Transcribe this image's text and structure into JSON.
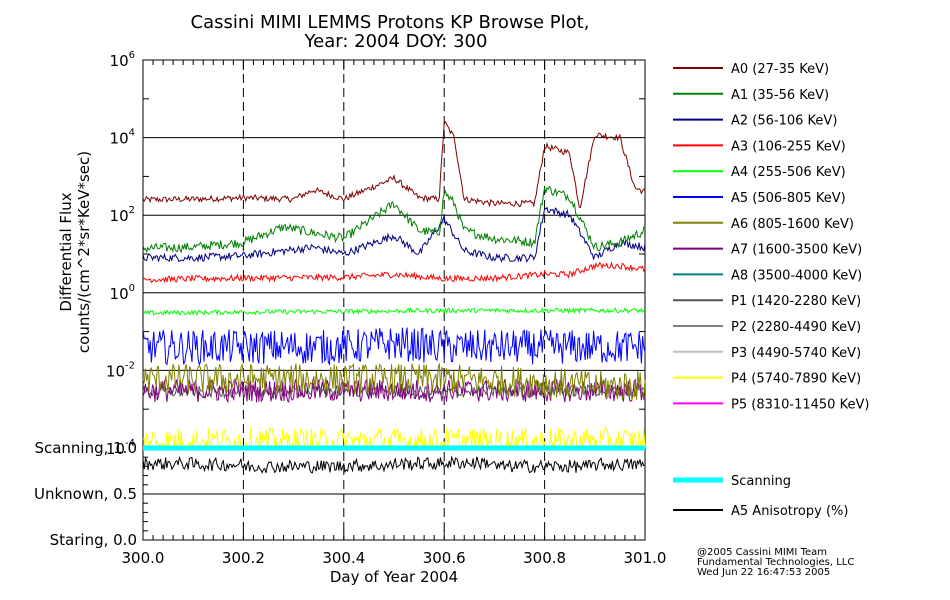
{
  "chart_data": {
    "type": "line",
    "title": "Cassini MIMI LEMMS Protons KP Browse Plot,",
    "subtitle": "Year: 2004 DOY: 300",
    "xlabel": "Day of Year 2004",
    "ylabel_line1": "Differential Flux",
    "ylabel_line2": "counts/(cm^2*sr*KeV*sec)",
    "xlim": [
      300.0,
      301.0
    ],
    "x_ticks": [
      "300.0",
      "300.2",
      "300.4",
      "300.6",
      "300.8",
      "301.0"
    ],
    "upper_panel": {
      "yscale": "log",
      "ylim": [
        0.0001,
        1000000
      ],
      "y_tick_exponents": [
        "6",
        "4",
        "2",
        "0",
        "-2",
        "-4"
      ],
      "grid": "major decades (solid), day ticks (dashed)"
    },
    "lower_panel": {
      "ylim": [
        0.0,
        1.0
      ],
      "y_ticks": [
        "Staring, 0.0",
        "Unknown, 0.5",
        "Scanning, 1.0"
      ]
    },
    "series": [
      {
        "name": "A0 (27-35 KeV)",
        "color": "#800000",
        "x": [
          300.0,
          300.1,
          300.2,
          300.3,
          300.34,
          300.4,
          300.5,
          300.55,
          300.59,
          300.6,
          300.62,
          300.64,
          300.7,
          300.78,
          300.8,
          300.85,
          300.87,
          300.9,
          300.95,
          300.98,
          301.0
        ],
        "y": [
          250,
          260,
          280,
          260,
          450,
          260,
          900,
          280,
          260,
          25000,
          10000,
          260,
          200,
          200,
          6000,
          4000,
          150,
          12000,
          10000,
          500,
          400
        ]
      },
      {
        "name": "A1 (35-56 KeV)",
        "color": "#008000",
        "x": [
          300.0,
          300.1,
          300.2,
          300.28,
          300.34,
          300.4,
          300.5,
          300.55,
          300.59,
          300.6,
          300.62,
          300.64,
          300.7,
          300.78,
          300.8,
          300.85,
          300.9,
          300.95,
          301.0
        ],
        "y": [
          14,
          15,
          20,
          50,
          35,
          25,
          200,
          40,
          35,
          400,
          200,
          40,
          25,
          20,
          500,
          300,
          15,
          20,
          40
        ]
      },
      {
        "name": "A2 (56-106 KeV)",
        "color": "#000080",
        "x": [
          300.0,
          300.1,
          300.2,
          300.34,
          300.4,
          300.5,
          300.55,
          300.6,
          300.64,
          300.7,
          300.78,
          300.8,
          300.85,
          300.9,
          300.95,
          301.0
        ],
        "y": [
          8,
          8,
          9,
          15,
          10,
          30,
          10,
          80,
          12,
          8,
          8,
          150,
          100,
          8,
          20,
          15
        ]
      },
      {
        "name": "A3 (106-255 KeV)",
        "color": "#ff0000",
        "x": [
          300.0,
          300.2,
          300.4,
          300.5,
          300.6,
          300.7,
          300.8,
          300.85,
          300.9,
          300.95,
          301.0
        ],
        "y": [
          2.2,
          2.4,
          2.5,
          3.0,
          2.3,
          2.4,
          3.0,
          3.0,
          5,
          5,
          4
        ]
      },
      {
        "name": "A4 (255-506 KeV)",
        "color": "#00ff00",
        "x": [
          300.0,
          300.2,
          300.4,
          300.6,
          300.8,
          301.0
        ],
        "y": [
          0.3,
          0.32,
          0.33,
          0.35,
          0.35,
          0.35
        ]
      },
      {
        "name": "A5 (506-805 KeV)",
        "color": "#0000ff",
        "x": [
          300.0,
          300.2,
          300.4,
          300.5,
          300.6,
          300.7,
          300.8,
          300.9,
          301.0
        ],
        "y": [
          0.04,
          0.04,
          0.04,
          0.05,
          0.04,
          0.04,
          0.04,
          0.04,
          0.04
        ]
      },
      {
        "name": "A6 (805-1600 KeV)",
        "color": "#808000",
        "x": [
          300.0,
          300.2,
          300.4,
          300.6,
          300.8,
          300.9,
          301.0
        ],
        "y": [
          0.006,
          0.006,
          0.006,
          0.006,
          0.005,
          0.004,
          0.004
        ]
      },
      {
        "name": "A7 (1600-3500 KeV)",
        "color": "#800080",
        "x": [
          300.0,
          300.2,
          300.4,
          300.6,
          300.8,
          301.0
        ],
        "y": [
          0.003,
          0.003,
          0.003,
          0.003,
          0.003,
          0.003
        ]
      },
      {
        "name": "A8 (3500-4000 KeV)",
        "color": "#008080",
        "x": [],
        "y": []
      },
      {
        "name": "P1 (1420-2280 KeV)",
        "color": "#555555",
        "x": [
          300.0,
          300.2,
          300.4,
          300.6,
          300.8,
          301.0
        ],
        "y": [
          0.0028,
          0.0028,
          0.003,
          0.0028,
          0.003,
          0.003
        ]
      },
      {
        "name": "P2 (2280-4490 KeV)",
        "color": "#808080",
        "x": [],
        "y": []
      },
      {
        "name": "P3 (4490-5740 KeV)",
        "color": "#c0c0c0",
        "x": [],
        "y": []
      },
      {
        "name": "P4 (5740-7890 KeV)",
        "color": "#ffff00",
        "x": [
          300.0,
          300.2,
          300.4,
          300.6,
          300.8,
          301.0
        ],
        "y": [
          0.00015,
          0.00015,
          0.00015,
          0.00015,
          0.00015,
          0.00015
        ]
      },
      {
        "name": "P5 (8310-11450 KeV)",
        "color": "#ff00ff",
        "x": [],
        "y": []
      }
    ],
    "lower_series": [
      {
        "name": "Scanning",
        "color": "#00ffff",
        "x": [
          300.0,
          301.0
        ],
        "y": [
          1.0,
          1.0
        ]
      },
      {
        "name": "A5 Anisotropy (%)",
        "color": "#000000",
        "x": [
          300.0,
          300.1,
          300.2,
          300.3,
          300.4,
          300.5,
          300.6,
          300.7,
          300.8,
          300.9,
          301.0
        ],
        "y": [
          0.83,
          0.82,
          0.8,
          0.8,
          0.81,
          0.83,
          0.84,
          0.8,
          0.8,
          0.82,
          0.82
        ]
      }
    ]
  },
  "credits": {
    "line1": "@2005 Cassini MIMI Team",
    "line2": "Fundamental Technologies, LLC",
    "line3": "Wed Jun 22 16:47:53 2005"
  }
}
